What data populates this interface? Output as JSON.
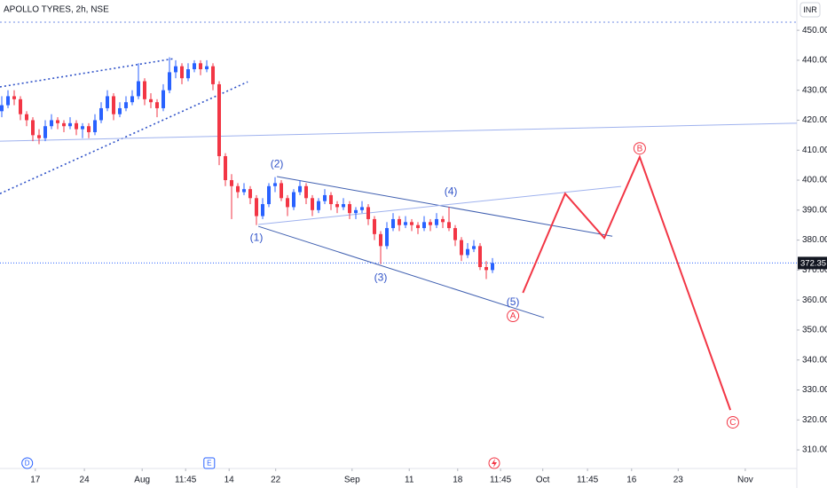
{
  "chart_data": {
    "type": "candlestick",
    "title": "APOLLO TYRES, 2h, NSE",
    "currency": "INR",
    "last_price": 372.35,
    "up_color": "#2962ff",
    "down_color": "#f23645",
    "xlim": [
      -0.286,
      128
    ],
    "ylim": [
      303.8,
      460.1
    ],
    "xticks": [
      {
        "value": 5.4,
        "label": "17"
      },
      {
        "value": 13.3,
        "label": "24"
      },
      {
        "value": 22.6,
        "label": "Aug"
      },
      {
        "value": 29.6,
        "label": "11:45"
      },
      {
        "value": 36.6,
        "label": "14"
      },
      {
        "value": 44.1,
        "label": "22"
      },
      {
        "value": 56.4,
        "label": "Sep"
      },
      {
        "value": 65.6,
        "label": "11"
      },
      {
        "value": 73.4,
        "label": "18"
      },
      {
        "value": 80.3,
        "label": "11:45"
      },
      {
        "value": 87.1,
        "label": "Oct"
      },
      {
        "value": 94.3,
        "label": "11:45"
      },
      {
        "value": 101.4,
        "label": "16"
      },
      {
        "value": 108.9,
        "label": "23"
      },
      {
        "value": 119.7,
        "label": "Nov"
      }
    ],
    "yticks": [
      {
        "value": 310,
        "label": "310.00"
      },
      {
        "value": 320,
        "label": "320.00"
      },
      {
        "value": 330,
        "label": "330.00"
      },
      {
        "value": 340,
        "label": "340.00"
      },
      {
        "value": 350,
        "label": "350.00"
      },
      {
        "value": 360,
        "label": "360.00"
      },
      {
        "value": 370,
        "label": "370.00"
      },
      {
        "value": 380,
        "label": "380.00"
      },
      {
        "value": 390,
        "label": "390.00"
      },
      {
        "value": 400,
        "label": "400.00"
      },
      {
        "value": 410,
        "label": "410.00"
      },
      {
        "value": 420,
        "label": "420.00"
      },
      {
        "value": 430,
        "label": "430.00"
      },
      {
        "value": 440,
        "label": "440.00"
      },
      {
        "value": 450,
        "label": "450.00"
      }
    ],
    "candles": [
      [
        423,
        428,
        421,
        425
      ],
      [
        425,
        430,
        424,
        428
      ],
      [
        428,
        430,
        425,
        427
      ],
      [
        427,
        428,
        420,
        422
      ],
      [
        422,
        423,
        418,
        420
      ],
      [
        420,
        421,
        413,
        415
      ],
      [
        415,
        417,
        412,
        414
      ],
      [
        414,
        420,
        413,
        418
      ],
      [
        418,
        422,
        417,
        420
      ],
      [
        420,
        421,
        417,
        419
      ],
      [
        419,
        420,
        416,
        418
      ],
      [
        418,
        421,
        417,
        419
      ],
      [
        419,
        420,
        415,
        417
      ],
      [
        417,
        419,
        414,
        418
      ],
      [
        418,
        419,
        414,
        416
      ],
      [
        416,
        422,
        415,
        420
      ],
      [
        420,
        426,
        419,
        424
      ],
      [
        424,
        430,
        423,
        428
      ],
      [
        428,
        429,
        420,
        422
      ],
      [
        422,
        426,
        421,
        424
      ],
      [
        424,
        428,
        423,
        426
      ],
      [
        426,
        430,
        425,
        428
      ],
      [
        428,
        439,
        427,
        433
      ],
      [
        433,
        434,
        425,
        427
      ],
      [
        427,
        429,
        424,
        426
      ],
      [
        426,
        427,
        421,
        424
      ],
      [
        424,
        432,
        423,
        430
      ],
      [
        430,
        441,
        429,
        436
      ],
      [
        436,
        440,
        434,
        438
      ],
      [
        438,
        439,
        432,
        434
      ],
      [
        434,
        439,
        433,
        437
      ],
      [
        437,
        440,
        436,
        439
      ],
      [
        439,
        440,
        435,
        437
      ],
      [
        437,
        440,
        436,
        438
      ],
      [
        438,
        439,
        430,
        432
      ],
      [
        432,
        433,
        405,
        408
      ],
      [
        408,
        409,
        398,
        400
      ],
      [
        400,
        402,
        387,
        398
      ],
      [
        398,
        399,
        394,
        396
      ],
      [
        396,
        399,
        395,
        397
      ],
      [
        397,
        398,
        392,
        394
      ],
      [
        394,
        395,
        385,
        388
      ],
      [
        388,
        394,
        387,
        392
      ],
      [
        392,
        399,
        391,
        398
      ],
      [
        398,
        401,
        396,
        399
      ],
      [
        399,
        400,
        393,
        394
      ],
      [
        394,
        395,
        388,
        391
      ],
      [
        391,
        397,
        390,
        396
      ],
      [
        396,
        400,
        395,
        398
      ],
      [
        398,
        399,
        392,
        394
      ],
      [
        394,
        395,
        388,
        390
      ],
      [
        390,
        394,
        389,
        393
      ],
      [
        393,
        397,
        392,
        395
      ],
      [
        395,
        396,
        390,
        392
      ],
      [
        392,
        393,
        389,
        391
      ],
      [
        391,
        394,
        390,
        392
      ],
      [
        392,
        393,
        387,
        389
      ],
      [
        389,
        391,
        387,
        390
      ],
      [
        390,
        393,
        389,
        391
      ],
      [
        391,
        392,
        385,
        387
      ],
      [
        387,
        388,
        380,
        382
      ],
      [
        382,
        383,
        372,
        378
      ],
      [
        378,
        386,
        377,
        384
      ],
      [
        384,
        389,
        383,
        387
      ],
      [
        387,
        388,
        383,
        385
      ],
      [
        385,
        388,
        384,
        386
      ],
      [
        386,
        387,
        383,
        385
      ],
      [
        385,
        386,
        382,
        384
      ],
      [
        384,
        388,
        383,
        386
      ],
      [
        386,
        387,
        383,
        385
      ],
      [
        385,
        389,
        384,
        387
      ],
      [
        387,
        388,
        384,
        386
      ],
      [
        386,
        391,
        383,
        384
      ],
      [
        384,
        385,
        378,
        380
      ],
      [
        380,
        381,
        373,
        375
      ],
      [
        375,
        379,
        374,
        377
      ],
      [
        377,
        380,
        376,
        378
      ],
      [
        378,
        379,
        370,
        371
      ],
      [
        371,
        373,
        367,
        370
      ],
      [
        370,
        374,
        369,
        372.35
      ]
    ],
    "events": [
      {
        "label": "D",
        "x": 4.1
      },
      {
        "label": "E",
        "x": 33.4
      }
    ],
    "wave_labels": [
      {
        "label": "(1)",
        "x": 41,
        "y": 380.7
      },
      {
        "label": "(2)",
        "x": 44.3,
        "y": 405.3
      },
      {
        "label": "(3)",
        "x": 61,
        "y": 367.4
      },
      {
        "label": "(4)",
        "x": 72.3,
        "y": 396.1
      },
      {
        "label": "(5)",
        "x": 82.3,
        "y": 359.2
      }
    ],
    "circle_labels": [
      {
        "label": "A",
        "x": 82.3,
        "y": 354.7
      },
      {
        "label": "B",
        "x": 102.7,
        "y": 410.6
      },
      {
        "label": "C",
        "x": 117.7,
        "y": 319.2
      }
    ],
    "projection": {
      "color": "#f23645",
      "x": [
        83.9,
        90.7,
        97,
        102.7,
        117.3
      ],
      "y": [
        362.4,
        395.5,
        380.7,
        407.7,
        323.3
      ]
    },
    "trendlines": [
      {
        "style": "solid",
        "color": "#3f5fb0",
        "x": [
          44.3,
          98.3
        ],
        "y": [
          401.2,
          381.3
        ]
      },
      {
        "style": "solid",
        "color": "#3f5fb0",
        "x": [
          41.3,
          87.3
        ],
        "y": [
          384.6,
          354.1
        ]
      },
      {
        "style": "faint",
        "color": "#9fb2ee",
        "x": [
          41.3,
          99.7
        ],
        "y": [
          385.2,
          397.9
        ]
      },
      {
        "style": "dotted",
        "color": "#2f52c8",
        "x": [
          -0.29,
          27.6
        ],
        "y": [
          431.1,
          440.5
        ]
      },
      {
        "style": "dotted",
        "color": "#2f52c8",
        "x": [
          -0.29,
          39.6
        ],
        "y": [
          395.5,
          432.8
        ]
      },
      {
        "style": "faint",
        "color": "#9fb2ee",
        "x": [
          -0.29,
          128
        ],
        "y": [
          413,
          419
        ]
      },
      {
        "style": "dotted",
        "color": "#9fb2ee",
        "x": [
          -0.29,
          128
        ],
        "y": [
          452.7,
          452.7
        ]
      }
    ]
  }
}
